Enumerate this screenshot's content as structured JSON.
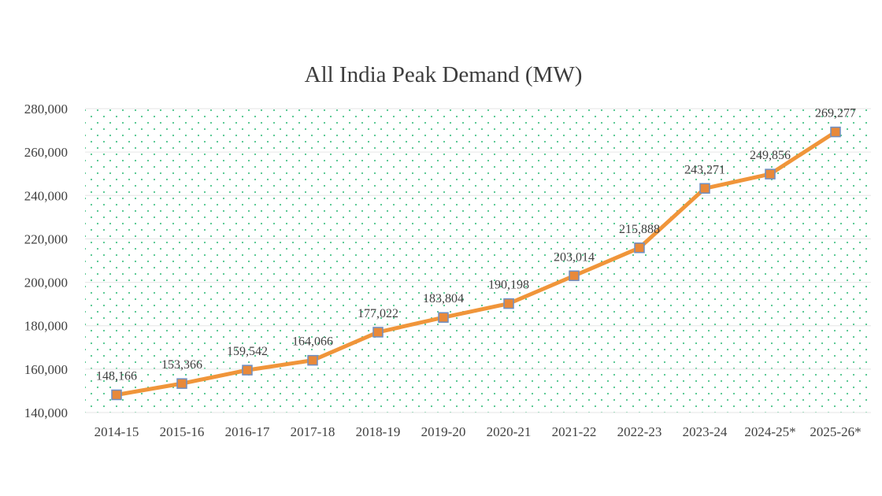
{
  "chart_data": {
    "type": "line",
    "title": "All India Peak Demand (MW)",
    "xlabel": "",
    "ylabel": "",
    "categories": [
      "2014-15",
      "2015-16",
      "2016-17",
      "2017-18",
      "2018-19",
      "2019-20",
      "2020-21",
      "2021-22",
      "2022-23",
      "2023-24",
      "2024-25*",
      "2025-26*"
    ],
    "series": [
      {
        "values": [
          148166,
          153366,
          159542,
          164066,
          177022,
          183804,
          190198,
          203014,
          215888,
          243271,
          249856,
          269277
        ],
        "data_labels": [
          "148,166",
          "153,366",
          "159,542",
          "164,066",
          "177,022",
          "183,804",
          "190,198",
          "203,014",
          "215,888",
          "243,271",
          "249,856",
          "269,277"
        ]
      }
    ],
    "ylim": [
      140000,
      280000
    ],
    "yticks": [
      140000,
      160000,
      180000,
      200000,
      220000,
      240000,
      260000,
      280000
    ],
    "ytick_labels": [
      "140,000",
      "160,000",
      "180,000",
      "200,000",
      "220,000",
      "240,000",
      "260,000",
      "280,000"
    ],
    "grid": false,
    "legend": "none",
    "colors": {
      "line": "#f0953a",
      "marker_fill": "#e8893a",
      "marker_stroke": "#6e8fc4",
      "plot_pattern_dots": "#4cc48a"
    }
  }
}
